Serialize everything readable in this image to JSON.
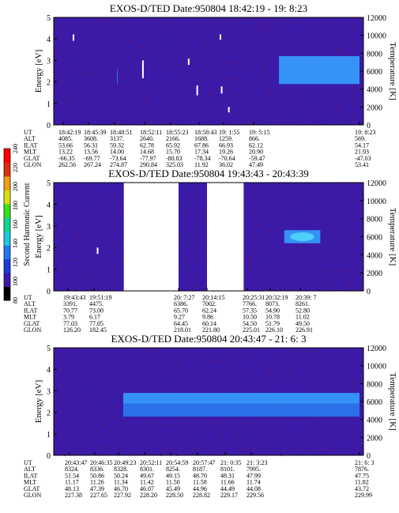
{
  "colors": {
    "background_purple": "#3b1aa8",
    "speckle_red": "#a0182a",
    "low_band_blue": "#1f5ae0",
    "mid_band_blue": "#2a7af0",
    "high_band_blue": "#35a0ff",
    "cyan_patch": "#55ddff",
    "marker_white": "#ffffff"
  },
  "colorbar": {
    "label": "Second Harmonic Current",
    "ticks": [
      "80",
      "100",
      "120",
      "140",
      "160",
      "180",
      "200",
      "220",
      "240"
    ],
    "colors": [
      "#000000",
      "#3b1aa8",
      "#1a3cd8",
      "#1f78f0",
      "#1fc8e0",
      "#10d890",
      "#38e020",
      "#d8e010",
      "#f0a010",
      "#e03010",
      "#ff0000"
    ]
  },
  "panels": [
    {
      "title": "EXOS-D/TED   Date:950804  18:42:19 - 19: 8:23",
      "ylabel_left": "Energy [eV]",
      "ylabel_right": "Temperature [K]",
      "energy_ticks": [
        "0",
        "1",
        "2",
        "3",
        "4",
        "5"
      ],
      "temp_ticks": [
        "0",
        "2000",
        "4000",
        "6000",
        "8000",
        "10000",
        "12000"
      ],
      "orbit_table": {
        "row_labels": [
          "UT",
          "ALT",
          "ILAT",
          "MLT",
          "GLAT",
          "GLON"
        ],
        "columns": [
          {
            "UT": "18:42:19",
            "ALT": "4085.",
            "ILAT": "53.66",
            "MLT": "13.22",
            "GLAT": "-66.35",
            "GLON": "262.56"
          },
          {
            "UT": "18:45:39",
            "ALT": "3608.",
            "ILAT": "56.31",
            "MLT": "13.56",
            "GLAT": "-69.77",
            "GLON": "267.24"
          },
          {
            "UT": "18:48:51",
            "ALT": "3137.",
            "ILAT": "59.32",
            "MLT": "14.00",
            "GLAT": "-73.64",
            "GLON": "274.87"
          },
          {
            "UT": "18:52:11",
            "ALT": "2640.",
            "ILAT": "62.78",
            "MLT": "14.68",
            "GLAT": "-77.97",
            "GLON": "290.84"
          },
          {
            "UT": "18:55:23",
            "ALT": "2166.",
            "ILAT": "65.92",
            "MLT": "15.70",
            "GLAT": "-80.83",
            "GLON": "325.03"
          },
          {
            "UT": "18:58:43",
            "ALT": "1688.",
            "ILAT": "67.86",
            "MLT": "17.34",
            "GLAT": "-78.34",
            "GLON": "11.92"
          },
          {
            "UT": "19: 1:55",
            "ALT": "1259.",
            "ILAT": "66.93",
            "MLT": "19.26",
            "GLAT": "-70.64",
            "GLON": "36.02"
          },
          {
            "UT": "19: 5:15",
            "ALT": "866.",
            "ILAT": "62.12",
            "MLT": "20.90",
            "GLAT": "-59.47",
            "GLON": "47.49"
          },
          {
            "UT": "19: 8:23",
            "ALT": "569.",
            "ILAT": "54.17",
            "MLT": "21.93",
            "GLAT": "-47.03",
            "GLON": "53.41"
          }
        ]
      }
    },
    {
      "title": "EXOS-D/TED   Date:950804  19:43:43 - 20:43:39",
      "ylabel_left": "Energy [eV]",
      "ylabel_right": "Temperature [K]",
      "energy_ticks": [
        "0",
        "1",
        "2",
        "3",
        "4",
        "5"
      ],
      "temp_ticks": [
        "0",
        "2000",
        "4000",
        "6000",
        "8000",
        "10000",
        "12000"
      ],
      "orbit_table": {
        "row_labels": [
          "UT",
          "ALT",
          "ILAT",
          "MLT",
          "GLAT",
          "GLON"
        ],
        "columns": [
          {
            "UT": "19:43:43",
            "ALT": "3391.",
            "ILAT": "70.77",
            "MLT": "3.79",
            "GLAT": "77.03",
            "GLON": "126.20"
          },
          {
            "UT": "19:51:19",
            "ALT": "4475.",
            "ILAT": "73.00",
            "MLT": "6.17",
            "GLAT": "77.05",
            "GLON": "182.45"
          },
          {
            "UT": "20: 7:27",
            "ALT": "6386.",
            "ILAT": "65.70",
            "MLT": "9.27",
            "GLAT": "64.45",
            "GLON": "218.01"
          },
          {
            "UT": "20:14:15",
            "ALT": "7002.",
            "ILAT": "62.24",
            "MLT": "9.86",
            "GLAT": "60.14",
            "GLON": "221.80"
          },
          {
            "UT": "20:25:31",
            "ALT": "7766.",
            "ILAT": "57.35",
            "MLT": "10.50",
            "GLAT": "54.50",
            "GLON": "225.01"
          },
          {
            "UT": "20:32:19",
            "ALT": "8073.",
            "ILAT": "54.90",
            "MLT": "10.78",
            "GLAT": "51.79",
            "GLON": "226.10"
          },
          {
            "UT": "20:39: 7",
            "ALT": "8261.",
            "ILAT": "52.80",
            "MLT": "11.02",
            "GLAT": "49.50",
            "GLON": "226.91"
          }
        ]
      }
    },
    {
      "title": "EXOS-D/TED   Date:950804  20:43:47 - 21: 6: 3",
      "ylabel_left": "Energy [eV]",
      "ylabel_right": "Temperature [K]",
      "energy_ticks": [
        "0",
        "1",
        "2",
        "3",
        "4",
        "5"
      ],
      "temp_ticks": [
        "0",
        "2000",
        "4000",
        "6000",
        "8000",
        "10000",
        "12000"
      ],
      "orbit_table": {
        "row_labels": [
          "UT",
          "ALT",
          "ILAT",
          "MLT",
          "GLAT",
          "GLON"
        ],
        "columns": [
          {
            "UT": "20:43:47",
            "ALT": "8324.",
            "ILAT": "51.54",
            "MLT": "11.17",
            "GLAT": "48.13",
            "GLON": "227.38"
          },
          {
            "UT": "20:46:35",
            "ALT": "8336.",
            "ILAT": "50.86",
            "MLT": "11.26",
            "GLAT": "47.39",
            "GLON": "227.65"
          },
          {
            "UT": "20:49:23",
            "ALT": "8328.",
            "ILAT": "50.24",
            "MLT": "11.34",
            "GLAT": "46.70",
            "GLON": "227.92"
          },
          {
            "UT": "20:52:11",
            "ALT": "8301.",
            "ILAT": "49.67",
            "MLT": "11.42",
            "GLAT": "46.07",
            "GLON": "228.20"
          },
          {
            "UT": "20:54:59",
            "ALT": "8254.",
            "ILAT": "49.15",
            "MLT": "11.50",
            "GLAT": "45.49",
            "GLON": "228.50"
          },
          {
            "UT": "20:57:47",
            "ALT": "8187.",
            "ILAT": "48.70",
            "MLT": "11.58",
            "GLAT": "44.96",
            "GLON": "228.82"
          },
          {
            "UT": "21: 0:35",
            "ALT": "8101.",
            "ILAT": "48.31",
            "MLT": "11.66",
            "GLAT": "44.49",
            "GLON": "229.17"
          },
          {
            "UT": "21: 3:23",
            "ALT": "7995.",
            "ILAT": "47.99",
            "MLT": "11.74",
            "GLAT": "44.08",
            "GLON": "229.56"
          },
          {
            "UT": "21: 6: 3",
            "ALT": "7876.",
            "ILAT": "47.75",
            "MLT": "11.82",
            "GLAT": "43.72",
            "GLON": "229.99"
          }
        ]
      }
    }
  ],
  "chart_data": [
    {
      "type": "heatmap",
      "title": "EXOS-D/TED   Date:950804  18:42:19 - 19: 8:23",
      "xlabel": "",
      "ylabel": "Energy [eV]",
      "y2label": "Temperature [K]",
      "ylim": [
        0,
        5
      ],
      "y2lim": [
        0,
        12000
      ],
      "x_ticks": [
        "18:42:19",
        "18:45:39",
        "18:48:51",
        "18:52:11",
        "18:55:23",
        "18:58:43",
        "19: 1:55",
        "19: 5:15",
        "19: 8:23"
      ],
      "data_gaps": [],
      "temperature_markers": [
        {
          "ut": "18:43:40",
          "temp_low": 9400,
          "temp_high": 10100
        },
        {
          "ut": "18:52:00",
          "temp_low": 5200,
          "temp_high": 7200
        },
        {
          "ut": "18:57:30",
          "temp_low": 6700,
          "temp_high": 7400
        },
        {
          "ut": "18:58:30",
          "temp_low": 3300,
          "temp_high": 4400
        },
        {
          "ut": "19: 1:30",
          "temp_low": 9500,
          "temp_high": 10100
        },
        {
          "ut": "19: 1:40",
          "temp_low": 3500,
          "temp_high": 4300
        },
        {
          "ut": "19: 2:30",
          "temp_low": 1400,
          "temp_high": 2000
        }
      ],
      "enhanced_regions": [
        {
          "ut_start": "18:42:19",
          "ut_end": "18:44:00",
          "energy_low": 1.9,
          "energy_high": 2.6,
          "level": "low"
        },
        {
          "ut_start": "19: 6:00",
          "ut_end": "19: 8:23",
          "energy_low": 1.9,
          "energy_high": 3.2,
          "level": "high"
        }
      ]
    },
    {
      "type": "heatmap",
      "title": "EXOS-D/TED   Date:950804  19:43:43 - 20:43:39",
      "xlabel": "",
      "ylabel": "Energy [eV]",
      "y2label": "Temperature [K]",
      "ylim": [
        0,
        5
      ],
      "y2lim": [
        0,
        12000
      ],
      "x_ticks": [
        "19:43:43",
        "19:51:19",
        "20: 7:27",
        "20:14:15",
        "20:25:31",
        "20:32:19",
        "20:39: 7"
      ],
      "data_gaps": [
        [
          "19:57:00",
          "20: 7:27"
        ],
        [
          "20:14:15",
          "20:24:30"
        ]
      ],
      "temperature_markers": [
        {
          "ut": "19:52:00",
          "temp_low": 4100,
          "temp_high": 4800
        }
      ],
      "enhanced_regions": [
        {
          "ut_start": "20:35:30",
          "ut_end": "20:43:39",
          "energy_low": 2.2,
          "energy_high": 2.8,
          "level": "high"
        }
      ]
    },
    {
      "type": "heatmap",
      "title": "EXOS-D/TED   Date:950804  20:43:47 - 21: 6: 3",
      "xlabel": "",
      "ylabel": "Energy [eV]",
      "y2label": "Temperature [K]",
      "ylim": [
        0,
        5
      ],
      "y2lim": [
        0,
        12000
      ],
      "x_ticks": [
        "20:43:47",
        "20:46:35",
        "20:49:23",
        "20:52:11",
        "20:54:59",
        "20:57:47",
        "21: 0:35",
        "21: 3:23",
        "21: 6: 3"
      ],
      "data_gaps": [],
      "temperature_markers": [],
      "enhanced_regions": [
        {
          "ut_start": "20:43:47",
          "ut_end": "21: 6: 3",
          "energy_low": 1.8,
          "energy_high": 2.4,
          "level": "mid"
        },
        {
          "ut_start": "20:43:47",
          "ut_end": "21: 6: 3",
          "energy_low": 2.4,
          "energy_high": 2.9,
          "level": "high"
        }
      ]
    }
  ]
}
